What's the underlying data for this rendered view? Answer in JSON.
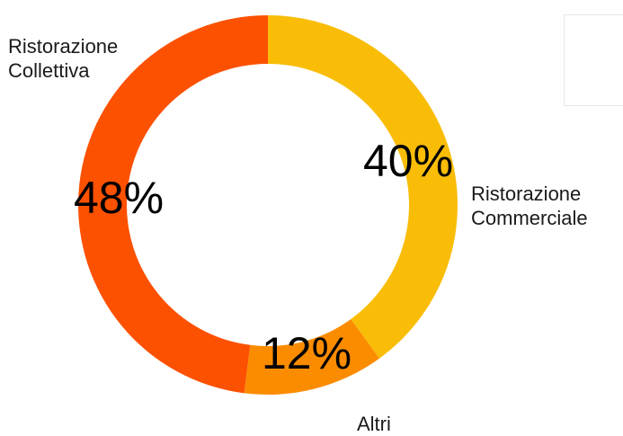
{
  "chart_data": {
    "type": "pie",
    "donut": true,
    "categories": [
      "Ristorazione Commerciale",
      "Altri",
      "Ristorazione Collettiva"
    ],
    "values": [
      40,
      12,
      48
    ],
    "value_labels": [
      "40%",
      "12%",
      "48%"
    ],
    "colors": [
      "#f9bd08",
      "#fb8c00",
      "#fc5100"
    ],
    "labels": {
      "collettiva_line1": "Ristorazione",
      "collettiva_line2": "Collettiva",
      "commerciale_line1": "Ristorazione",
      "commerciale_line2": "Commerciale",
      "altri": "Altri"
    }
  }
}
